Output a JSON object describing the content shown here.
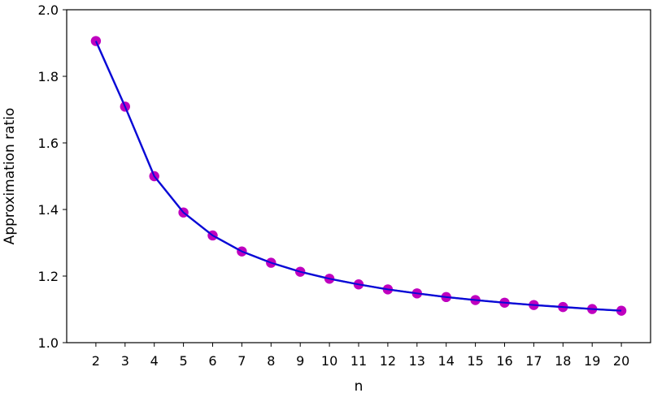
{
  "chart_data": {
    "type": "line",
    "title": "",
    "xlabel": "n",
    "ylabel": "Approximation ratio",
    "x": [
      2,
      3,
      4,
      5,
      6,
      7,
      8,
      9,
      10,
      11,
      12,
      13,
      14,
      15,
      16,
      17,
      18,
      19,
      20
    ],
    "series": [
      {
        "values": [
          1.906,
          1.709,
          1.5,
          1.391,
          1.322,
          1.274,
          1.24,
          1.213,
          1.192,
          1.175,
          1.16,
          1.148,
          1.137,
          1.128,
          1.12,
          1.113,
          1.107,
          1.101,
          1.096
        ],
        "line_color": "#0a0ad6",
        "marker_color": "#bf00bf"
      }
    ],
    "xlim": [
      1,
      21
    ],
    "ylim": [
      1.0,
      2.0
    ],
    "x_ticks": [
      2,
      3,
      4,
      5,
      6,
      7,
      8,
      9,
      10,
      11,
      12,
      13,
      14,
      15,
      16,
      17,
      18,
      19,
      20
    ],
    "y_ticks": [
      "1.0",
      "1.2",
      "1.4",
      "1.6",
      "1.8",
      "2.0"
    ],
    "grid": false,
    "legend": "none"
  }
}
